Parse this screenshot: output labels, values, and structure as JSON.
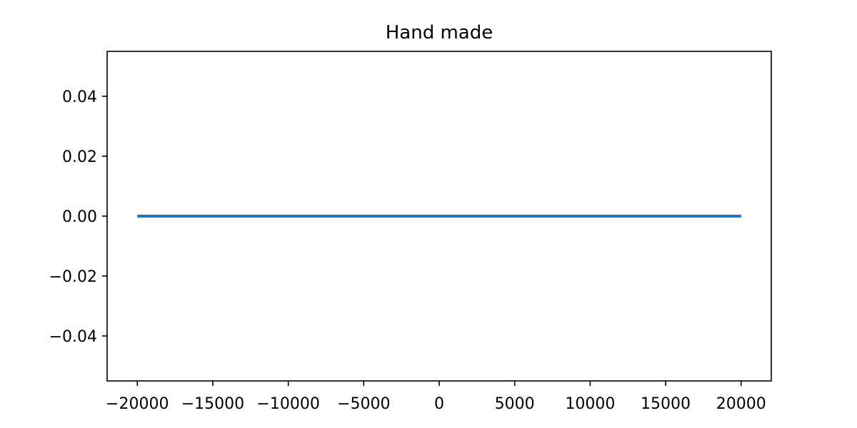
{
  "chart_data": {
    "type": "line",
    "title": "Hand made",
    "xlabel": "",
    "ylabel": "",
    "x": [
      -20000,
      20000
    ],
    "series": [
      {
        "values": [
          0.0,
          0.0
        ],
        "color": "#1f77b4"
      }
    ],
    "xlim": [
      -22000,
      22000
    ],
    "ylim": [
      -0.055,
      0.055
    ],
    "xticks": [
      -20000,
      -15000,
      -10000,
      -5000,
      0,
      5000,
      10000,
      15000,
      20000
    ],
    "xtick_labels": [
      "−20000",
      "−15000",
      "−10000",
      "−5000",
      "0",
      "5000",
      "10000",
      "15000",
      "20000"
    ],
    "yticks": [
      0.04,
      0.02,
      0.0,
      -0.02,
      -0.04
    ],
    "ytick_labels": [
      "0.04",
      "0.02",
      "0.00",
      "−0.02",
      "−0.04"
    ],
    "grid": false,
    "legend": "none"
  }
}
